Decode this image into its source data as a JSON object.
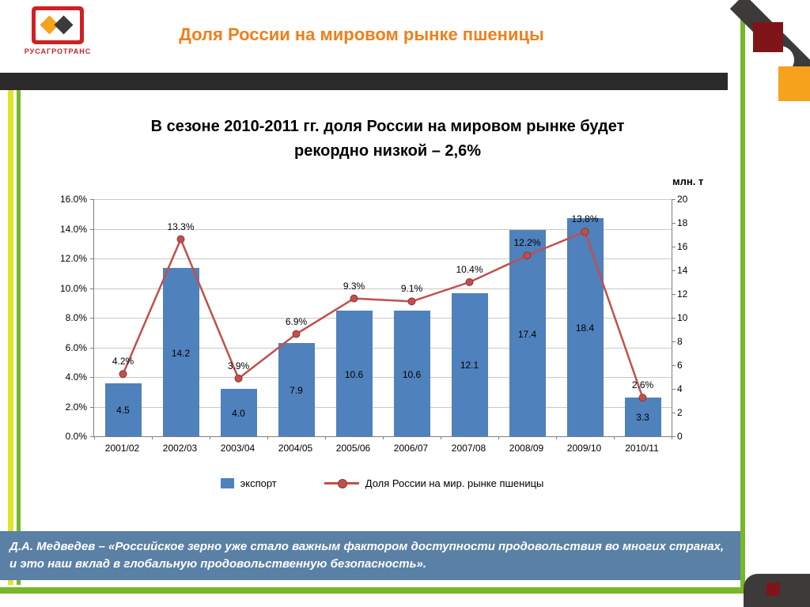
{
  "header": {
    "logo_text": "РУСАГРОТРАНС",
    "title": "Доля России на мировом рынке пшеницы"
  },
  "heading": {
    "line1": "В сезоне 2010-2011 гг. доля России на мировом рынке будет",
    "line2": "рекордно низкой – 2,6%"
  },
  "chart_data": {
    "type": "combo-bar-line",
    "categories": [
      "2001/02",
      "2002/03",
      "2003/04",
      "2004/05",
      "2005/06",
      "2006/07",
      "2007/08",
      "2008/09",
      "2009/10",
      "2010/11"
    ],
    "series": [
      {
        "name": "экспорт",
        "type": "bar",
        "axis": "right",
        "color": "#4f81bd",
        "values": [
          4.5,
          14.2,
          4.0,
          7.9,
          10.6,
          10.6,
          12.1,
          17.4,
          18.4,
          3.3
        ],
        "value_labels": [
          "4.5",
          "14.2",
          "4.0",
          "7.9",
          "10.6",
          "10.6",
          "12.1",
          "17.4",
          "18.4",
          "3.3"
        ]
      },
      {
        "name": "Доля России на мир. рынке пшеницы",
        "type": "line",
        "axis": "left",
        "color": "#c0504d",
        "marker_stroke": "#8c3634",
        "values": [
          4.2,
          13.3,
          3.9,
          6.9,
          9.3,
          9.1,
          10.4,
          12.2,
          13.8,
          2.6
        ],
        "value_labels": [
          "4.2%",
          "13.3%",
          "3.9%",
          "6.9%",
          "9.3%",
          "9.1%",
          "10.4%",
          "12.2%",
          "13.8%",
          "2.6%"
        ]
      }
    ],
    "left_axis": {
      "min": 0,
      "max": 16,
      "step": 2,
      "tick_suffix": "%",
      "tick_decimals": 1
    },
    "right_axis": {
      "min": 0,
      "max": 20,
      "step": 2,
      "title": "млн. т"
    },
    "grid": true,
    "legend_position": "bottom"
  },
  "quote": "Д.А. Медведев – «Российское зерно уже стало важным фактором доступности продовольствия во многих странах, и это наш вклад в глобальную продовольственную безопасность».",
  "colors": {
    "accent_orange": "#ef7f1a",
    "bar_blue": "#4f81bd",
    "line_red": "#c0504d",
    "banner_blue": "#5b80a5",
    "stripe_yellow": "#e0e32b",
    "stripe_green": "#76b82a",
    "dark": "#2b2a29",
    "maroon": "#7f1518"
  }
}
